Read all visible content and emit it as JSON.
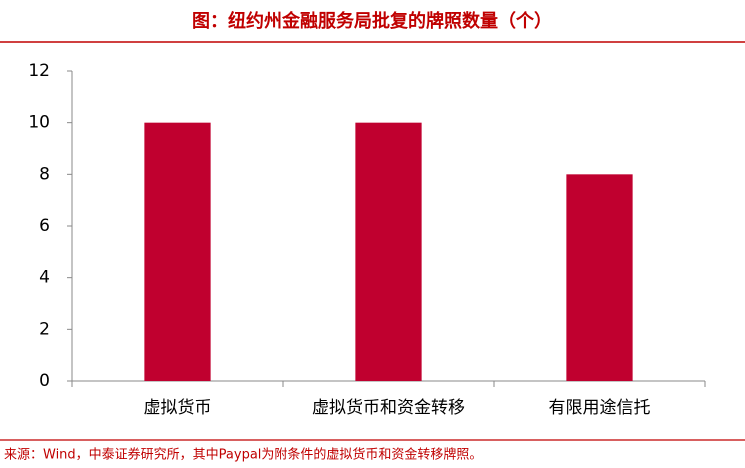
{
  "chart_data": {
    "type": "bar",
    "title": "图：纽约州金融服务局批复的牌照数量（个）",
    "categories": [
      "虚拟货币",
      "虚拟货币和资金转移",
      "有限用途信托"
    ],
    "values": [
      10,
      10,
      8
    ],
    "color": "#c0002f",
    "ylim": [
      0,
      12
    ],
    "yticks": [
      0,
      2,
      4,
      6,
      8,
      10,
      12
    ],
    "source": "来源：Wind，中泰证券研究所，其中Paypal为附条件的虚拟货币和资金转移牌照。"
  }
}
